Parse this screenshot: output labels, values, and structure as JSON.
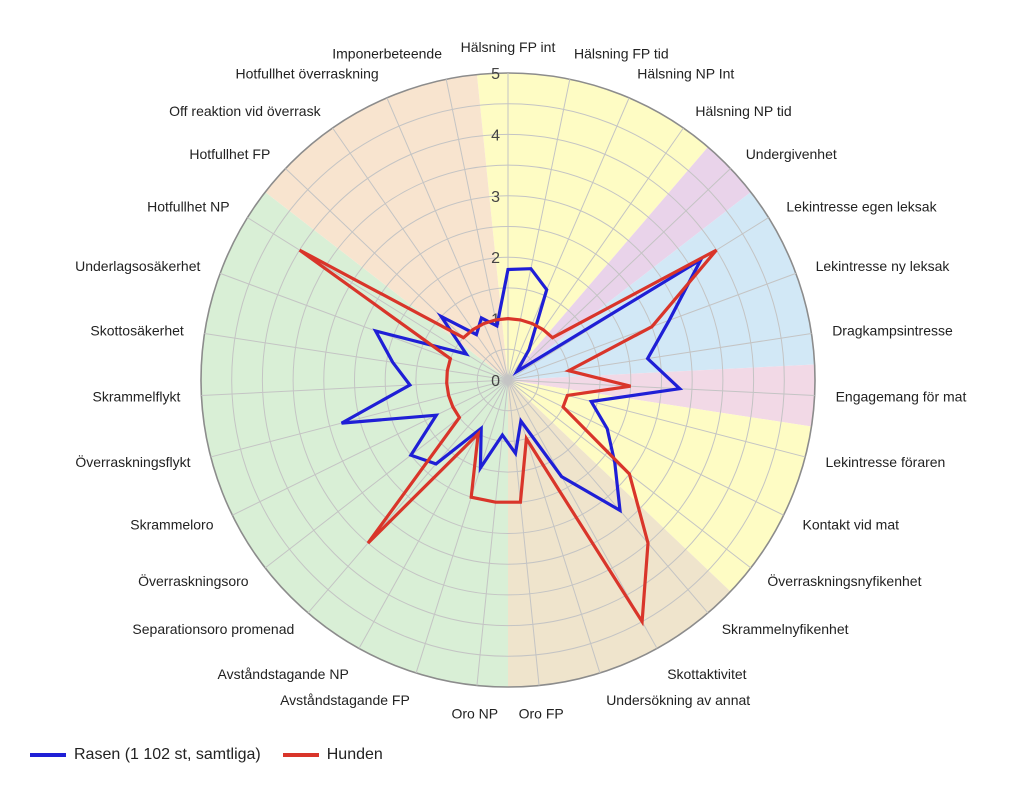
{
  "chart_data": {
    "type": "radar",
    "categories": [
      "Hälsning FP int",
      "Hälsning FP tid",
      "Hälsning NP Int",
      "Hälsning NP tid",
      "Undergivenhet",
      "Lekintresse egen leksak",
      "Lekintresse ny leksak",
      "Dragkampsintresse",
      "Engagemang för mat",
      "Lekintresse föraren",
      "Kontakt vid mat",
      "Överraskningsnyfikenhet",
      "Skrammelnyfikenhet",
      "Skottaktivitet",
      "Undersökning av annat",
      "Oro FP",
      "Oro NP",
      "Avståndstagande FP",
      "Avståndstagande NP",
      "Separationsoro promenad",
      "Överraskningsoro",
      "Skrammeloro",
      "Överraskningsflykt",
      "Skrammelflykt",
      "Skottosäkerhet",
      "Underlagsosäkerhet",
      "Hotfullhet NP",
      "Hotfullhet FP",
      "Off reaktion vid överrask",
      "Hotfullhet överraskning",
      "Imponerbeteende"
    ],
    "rlim": [
      0,
      5
    ],
    "ticks": [
      "0",
      "1",
      "2",
      "3",
      "4",
      "5"
    ],
    "series": [
      {
        "name": "Rasen (1 102 st, samtliga)",
        "color": "#1f1fd6",
        "values": [
          1.8,
          1.85,
          1.6,
          0.6,
          0.2,
          3.7,
          2.8,
          2.3,
          2.8,
          1.4,
          1.8,
          2.2,
          2.8,
          1.8,
          0.7,
          1.2,
          0.9,
          1.5,
          0.9,
          1.8,
          2.0,
          1.3,
          2.8,
          1.6,
          1.9,
          2.3,
          0.8,
          1.5,
          0.9,
          1.1,
          0.9
        ]
      },
      {
        "name": "Hunden",
        "color": "#d9352a",
        "values": [
          1.0,
          1.0,
          1.0,
          1.0,
          1.0,
          4.0,
          2.5,
          1.0,
          2.0,
          1.0,
          1.0,
          2.5,
          3.5,
          4.5,
          1.0,
          2.0,
          2.0,
          2.0,
          1.0,
          3.5,
          1.0,
          1.0,
          1.0,
          1.0,
          1.0,
          1.0,
          4.0,
          1.0,
          1.0,
          1.0,
          1.0
        ]
      }
    ],
    "sectors": [
      {
        "start": 0,
        "end": 3,
        "color": "#fefcc4"
      },
      {
        "start": 4,
        "end": 4,
        "color": "#e9d3ea"
      },
      {
        "start": 5,
        "end": 7,
        "color": "#d2e8f6"
      },
      {
        "start": 8,
        "end": 8,
        "color": "#f2d9e6"
      },
      {
        "start": 9,
        "end": 11,
        "color": "#fefcc4"
      },
      {
        "start": 12,
        "end": 15,
        "color": "#efe4cc"
      },
      {
        "start": 16,
        "end": 26,
        "color": "#d9efd6"
      },
      {
        "start": 27,
        "end": 30,
        "color": "#f8e4cf"
      }
    ]
  },
  "legend": {
    "items": [
      {
        "label": "Rasen (1 102 st, samtliga)",
        "color": "#1f1fd6"
      },
      {
        "label": "Hunden",
        "color": "#d9352a"
      }
    ]
  }
}
